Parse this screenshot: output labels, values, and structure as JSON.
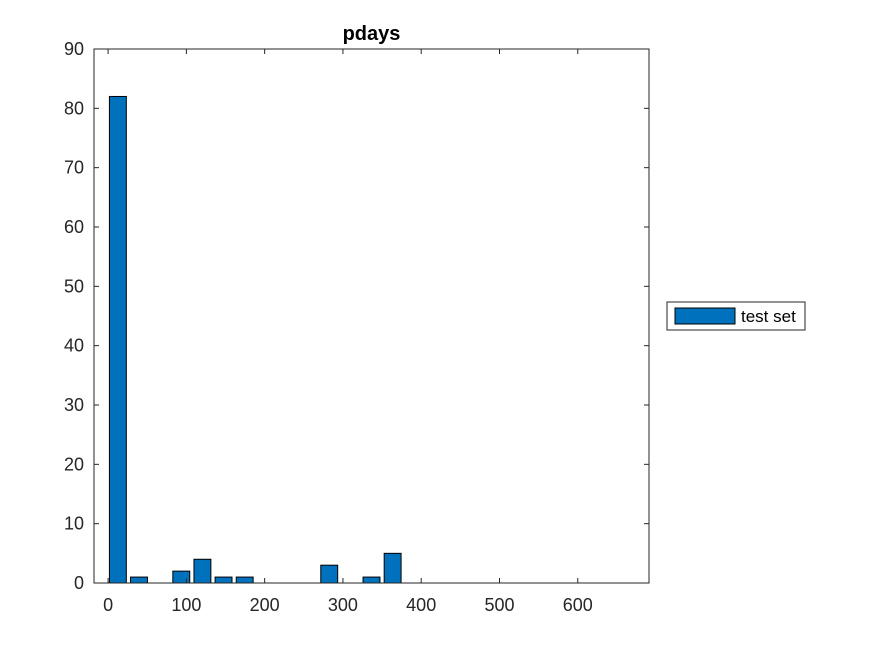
{
  "chart_data": {
    "type": "bar",
    "title": "pdays",
    "xlabel": "",
    "ylabel": "",
    "xlim": [
      -18,
      691
    ],
    "ylim": [
      0,
      90
    ],
    "xticks": [
      0,
      100,
      200,
      300,
      400,
      500,
      600
    ],
    "yticks": [
      0,
      10,
      20,
      30,
      40,
      50,
      60,
      70,
      80,
      90
    ],
    "bin_width": 27,
    "series": [
      {
        "name": "test set",
        "color": "#0072BD",
        "x": [
          12.5,
          39.5,
          93.5,
          120.5,
          147.5,
          174.5,
          282.5,
          336.5,
          363.5
        ],
        "values": [
          82,
          1,
          2,
          4,
          1,
          1,
          3,
          1,
          5
        ]
      }
    ],
    "legend_position": "outside-right",
    "grid": false
  }
}
